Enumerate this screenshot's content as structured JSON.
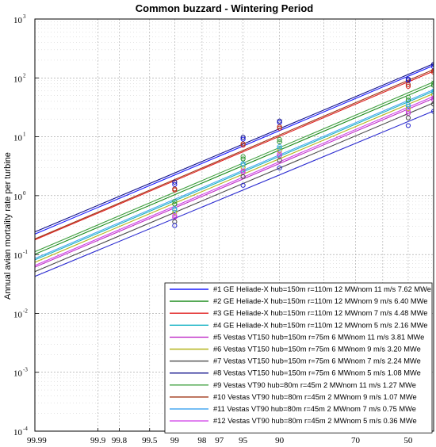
{
  "chart_data": {
    "type": "line",
    "title": "Common buzzard - Wintering Period",
    "xlabel": "",
    "ylabel": "Annual avian mortality rate per turbine",
    "x_scale": "probit",
    "y_scale": "log",
    "ylim": [
      0.0001,
      1000
    ],
    "x_tick_labels": [
      "99.99",
      "99.9",
      "99.8",
      "99.5",
      "99",
      "98",
      "97",
      "95",
      "90",
      "70",
      "50"
    ],
    "x_ticks": [
      99.99,
      99.9,
      99.8,
      99.5,
      99,
      98,
      97,
      95,
      90,
      70,
      50
    ],
    "x_plotted_ticks": [
      80,
      60
    ],
    "y_tick_base": "10",
    "y_tick_exponents": [
      "-4",
      "-3",
      "-2",
      "-1",
      "0",
      "1",
      "2",
      "3"
    ],
    "grid": true,
    "legend": "bottom-right",
    "series": [
      {
        "name": "#1 GE Heliade-X hub=150m r=110m 12 MWnom 11 m/s 7.62 MWe",
        "color": "#1c1cff",
        "points": [
          [
            99,
            1.55
          ],
          [
            95,
            9.1
          ],
          [
            90,
            17.5
          ],
          [
            50,
            90
          ],
          [
            40,
            155
          ]
        ]
      },
      {
        "name": "#2 GE Heliade-X hub=150m r=110m 12 MWnom 9 m/s 6.40 MWe",
        "color": "#1c8c1c",
        "points": [
          [
            99,
            0.72
          ],
          [
            95,
            4.2
          ],
          [
            90,
            8.2
          ],
          [
            50,
            42
          ],
          [
            40,
            75
          ]
        ]
      },
      {
        "name": "#3 GE Heliade-X hub=150m r=110m 12 MWnom 7 m/s 4.48 MWe",
        "color": "#e02020",
        "points": [
          [
            99,
            1.25
          ],
          [
            95,
            7.2
          ],
          [
            90,
            14
          ],
          [
            50,
            72
          ],
          [
            40,
            125
          ]
        ]
      },
      {
        "name": "#4 GE Heliade-X hub=150m r=110m 12 MWnom 5 m/s 2.16 MWe",
        "color": "#16b3c4",
        "points": [
          [
            99,
            0.57
          ],
          [
            95,
            3.3
          ],
          [
            90,
            6.4
          ],
          [
            50,
            33
          ],
          [
            40,
            57
          ]
        ]
      },
      {
        "name": "#5 Vestas VT150 hub=150m r=75m 6 MWnom 11 m/s 3.81 MWe",
        "color": "#c030c8",
        "points": [
          [
            99,
            0.43
          ],
          [
            95,
            2.5
          ],
          [
            90,
            4.8
          ],
          [
            50,
            25
          ],
          [
            40,
            43
          ]
        ]
      },
      {
        "name": "#6 Vestas VT150 hub=150m r=75m 6 MWnom 9 m/s 3.20 MWe",
        "color": "#b4b41c",
        "points": [
          [
            99,
            0.52
          ],
          [
            95,
            3.0
          ],
          [
            90,
            5.8
          ],
          [
            50,
            30
          ],
          [
            40,
            52
          ]
        ]
      },
      {
        "name": "#7 Vestas VT150 hub=150m r=75m 6 MWnom 7 m/s 2.24 MWe",
        "color": "#4a4a4a",
        "points": [
          [
            99,
            0.36
          ],
          [
            95,
            2.1
          ],
          [
            90,
            4.0
          ],
          [
            50,
            21
          ],
          [
            40,
            36
          ]
        ]
      },
      {
        "name": "#8 Vestas VT150 hub=150m r=75m 6 MWnom 5 m/s 1.08 MWe",
        "color": "#10108a",
        "points": [
          [
            99,
            1.7
          ],
          [
            95,
            9.8
          ],
          [
            90,
            18.5
          ],
          [
            50,
            95
          ],
          [
            40,
            170
          ]
        ]
      },
      {
        "name": "#9 Vestas VT90 hub=80m r=45m 2 MWnom 11 m/s 1.27 MWe",
        "color": "#40a040",
        "points": [
          [
            99,
            0.8
          ],
          [
            95,
            4.6
          ],
          [
            90,
            9.0
          ],
          [
            50,
            47
          ],
          [
            40,
            82
          ]
        ]
      },
      {
        "name": "#10 Vestas VT90 hub=80m r=45m 2 MWnom 9 m/s 1.07 MWe",
        "color": "#a03818",
        "points": [
          [
            99,
            1.3
          ],
          [
            95,
            7.6
          ],
          [
            90,
            14.8
          ],
          [
            50,
            77
          ],
          [
            40,
            132
          ]
        ]
      },
      {
        "name": "#11 Vestas VT90 hub=80m r=45m 2 MWnom 7 m/s 0.75 MWe",
        "color": "#48a8f0",
        "points": [
          [
            99,
            0.6
          ],
          [
            95,
            3.5
          ],
          [
            90,
            6.8
          ],
          [
            50,
            35
          ],
          [
            40,
            60
          ]
        ]
      },
      {
        "name": "#12 Vestas VT90 hub=80m r=45m 2 MWnom 5 m/s 0.36 MWe",
        "color": "#d040e8",
        "points": [
          [
            99,
            0.46
          ],
          [
            95,
            2.65
          ],
          [
            90,
            5.2
          ],
          [
            50,
            27
          ],
          [
            40,
            46
          ]
        ]
      },
      {
        "name": "",
        "color": "#2a2ad0",
        "points": [
          [
            99,
            0.31
          ],
          [
            95,
            1.5
          ],
          [
            90,
            2.95
          ],
          [
            50,
            15.5
          ],
          [
            40,
            27
          ]
        ]
      }
    ]
  }
}
